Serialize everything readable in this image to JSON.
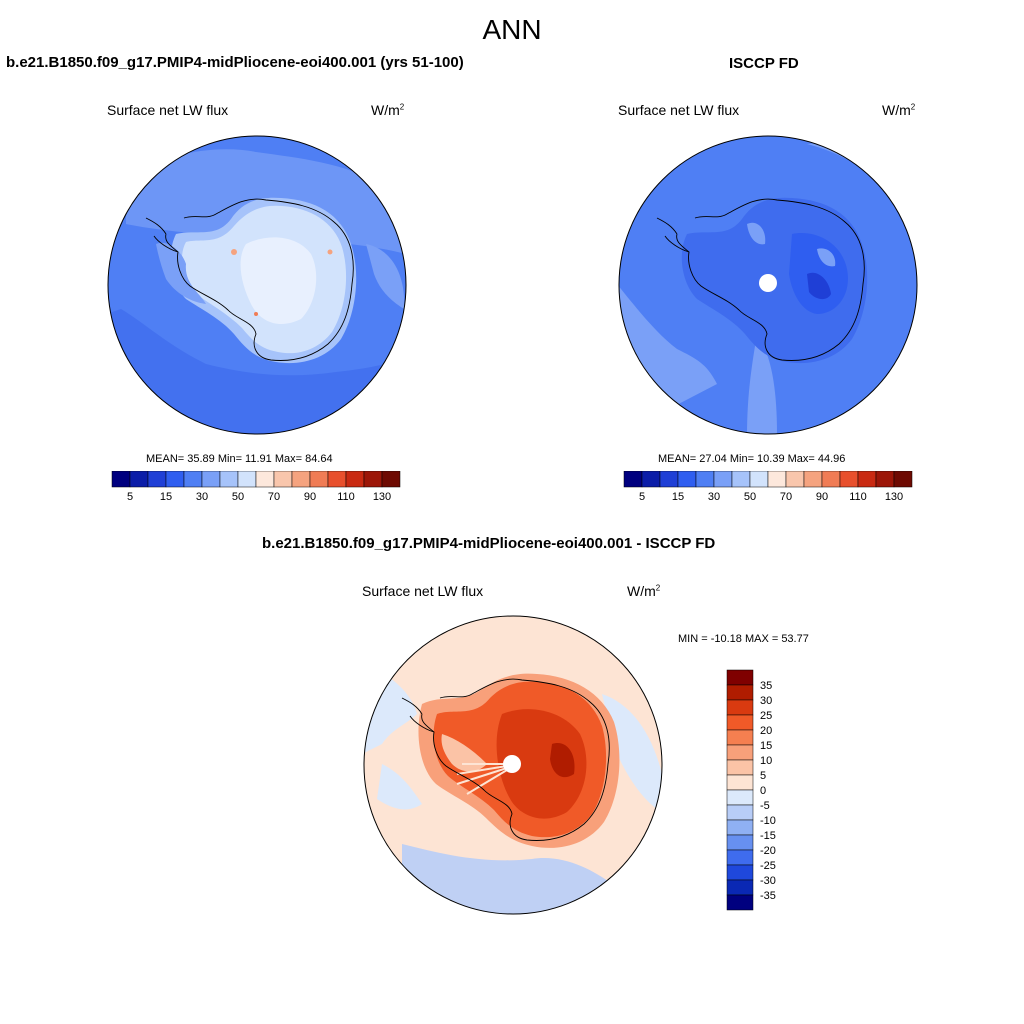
{
  "figure": {
    "season": "ANN",
    "top_left": {
      "title": "b.e21.B1850.f09_g17.PMIP4-midPliocene-eoi400.001 (yrs 51-100)",
      "variable": "Surface net LW flux",
      "units_base": "W/m",
      "units_exp": "2",
      "stats": "MEAN=  35.89  Min=  11.91  Max=  84.64",
      "mean": 35.89,
      "min": 11.91,
      "max": 84.64
    },
    "top_right": {
      "title": "ISCCP FD",
      "variable": "Surface net LW flux",
      "units_base": "W/m",
      "units_exp": "2",
      "stats": "MEAN=  27.04  Min=  10.39  Max=  44.96",
      "mean": 27.04,
      "min": 10.39,
      "max": 44.96
    },
    "difference": {
      "title": "b.e21.B1850.f09_g17.PMIP4-midPliocene-eoi400.001 - ISCCP FD",
      "variable": "Surface net LW flux",
      "units_base": "W/m",
      "units_exp": "2",
      "stats": "MIN = -10.18 MAX =  53.77",
      "min": -10.18,
      "max": 53.77
    }
  },
  "chart_data": [
    {
      "type": "heatmap",
      "projection": "south-polar-stereographic",
      "title": "b.e21.B1850.f09_g17.PMIP4-midPliocene-eoi400.001 (yrs 51-100)",
      "variable": "Surface net LW flux",
      "units": "W/m2",
      "colorbar_levels": [
        5,
        10,
        15,
        20,
        30,
        40,
        50,
        60,
        70,
        80,
        90,
        100,
        110,
        120,
        130
      ],
      "colorbar_labels": [
        "5",
        "15",
        "30",
        "50",
        "70",
        "90",
        "110",
        "130"
      ],
      "colors": [
        "#00007f",
        "#0b1da8",
        "#1f3fd6",
        "#2f5ef0",
        "#4f7ff4",
        "#7aa0f7",
        "#a6c3fa",
        "#d2e3fc",
        "#fde8dc",
        "#f9c6ac",
        "#f5a37f",
        "#f07c55",
        "#e8502d",
        "#c92a12",
        "#9c1608",
        "#6e0a02"
      ],
      "mean": 35.89,
      "min": 11.91,
      "max": 84.64
    },
    {
      "type": "heatmap",
      "projection": "south-polar-stereographic",
      "title": "ISCCP FD",
      "variable": "Surface net LW flux",
      "units": "W/m2",
      "colorbar_levels": [
        5,
        10,
        15,
        20,
        30,
        40,
        50,
        60,
        70,
        80,
        90,
        100,
        110,
        120,
        130
      ],
      "colorbar_labels": [
        "5",
        "15",
        "30",
        "50",
        "70",
        "90",
        "110",
        "130"
      ],
      "colors": [
        "#00007f",
        "#0b1da8",
        "#1f3fd6",
        "#2f5ef0",
        "#4f7ff4",
        "#7aa0f7",
        "#a6c3fa",
        "#d2e3fc",
        "#fde8dc",
        "#f9c6ac",
        "#f5a37f",
        "#f07c55",
        "#e8502d",
        "#c92a12",
        "#9c1608",
        "#6e0a02"
      ],
      "mean": 27.04,
      "min": 10.39,
      "max": 44.96
    },
    {
      "type": "heatmap",
      "projection": "south-polar-stereographic",
      "title": "b.e21.B1850.f09_g17.PMIP4-midPliocene-eoi400.001 - ISCCP FD",
      "variable": "Surface net LW flux",
      "units": "W/m2",
      "colorbar_levels": [
        35,
        30,
        25,
        20,
        15,
        10,
        5,
        0,
        -5,
        -10,
        -15,
        -20,
        -25,
        -30,
        -35
      ],
      "colorbar_labels": [
        "35",
        "30",
        "25",
        "20",
        "15",
        "10",
        "5",
        "0",
        "-5",
        "-10",
        "-15",
        "-20",
        "-25",
        "-30",
        "-35"
      ],
      "colors": [
        "#7f0000",
        "#b01c00",
        "#d93a10",
        "#f05a28",
        "#f57f50",
        "#f8a07a",
        "#fbc3a6",
        "#fde4d4",
        "#dce9fb",
        "#b8cdf7",
        "#8fb0f3",
        "#6790f0",
        "#3f6cee",
        "#1f48dc",
        "#0a28b4",
        "#00007f"
      ],
      "min": -10.18,
      "max": 53.77
    }
  ]
}
